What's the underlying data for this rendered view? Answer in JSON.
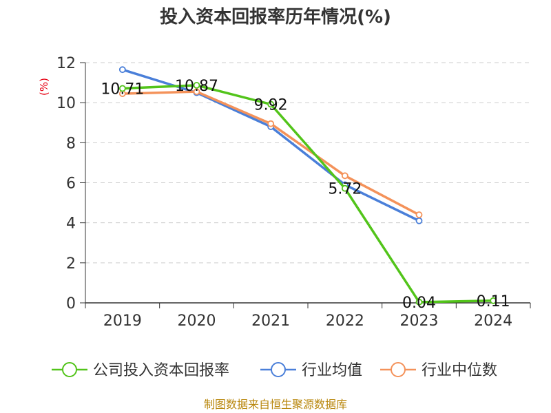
{
  "chart_data": {
    "type": "line",
    "title": "投入资本回报率历年情况(%)",
    "ylabel": "(%)",
    "xlabel": "",
    "categories": [
      "2019",
      "2020",
      "2021",
      "2022",
      "2023",
      "2024"
    ],
    "ylim": [
      0,
      12
    ],
    "yticks": [
      0,
      2,
      4,
      6,
      8,
      10,
      12
    ],
    "grid": true,
    "legend_position": "bottom",
    "series": [
      {
        "name": "公司投入资本回报率",
        "color": "#52c41a",
        "values": [
          10.71,
          10.87,
          9.92,
          5.72,
          0.04,
          0.11
        ],
        "labels": [
          "10.71",
          "10.87",
          "9.92",
          "5.72",
          "0.04",
          "0.11"
        ]
      },
      {
        "name": "行业均值",
        "color": "#4a7fd9",
        "values": [
          11.65,
          10.5,
          8.8,
          5.9,
          4.1,
          null
        ]
      },
      {
        "name": "行业中位数",
        "color": "#f4925a",
        "values": [
          10.45,
          10.55,
          8.95,
          6.35,
          4.4,
          null
        ]
      }
    ],
    "source": "制图数据来自恒生聚源数据库"
  }
}
